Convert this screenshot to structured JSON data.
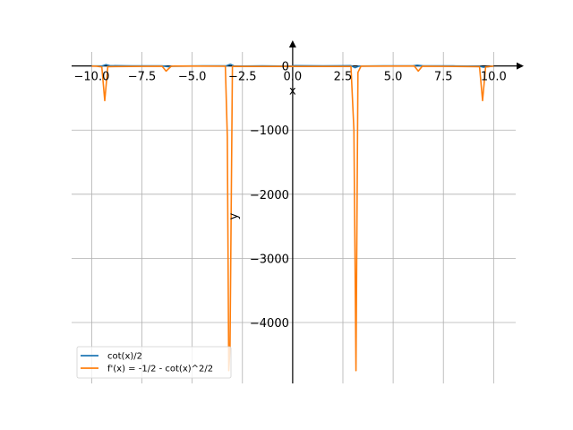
{
  "chart_data": {
    "type": "line",
    "xlabel": "x",
    "ylabel": "y",
    "xlim": [
      -11.0,
      11.5
    ],
    "ylim": [
      -4950,
      400
    ],
    "grid": true,
    "legend_position": "lower-left",
    "x_ticks": [
      {
        "value": -10.0,
        "label": "−10.0"
      },
      {
        "value": -7.5,
        "label": "−7.5"
      },
      {
        "value": -5.0,
        "label": "−5.0"
      },
      {
        "value": -2.5,
        "label": "−2.5"
      },
      {
        "value": 0.0,
        "label": "0.0"
      },
      {
        "value": 2.5,
        "label": "2.5"
      },
      {
        "value": 5.0,
        "label": "5.0"
      },
      {
        "value": 7.5,
        "label": "7.5"
      },
      {
        "value": 10.0,
        "label": "10.0"
      }
    ],
    "y_ticks": [
      {
        "value": 0,
        "label": "0"
      },
      {
        "value": -1000,
        "label": "−1000"
      },
      {
        "value": -2000,
        "label": "−2000"
      },
      {
        "value": -3000,
        "label": "−3000"
      },
      {
        "value": -4000,
        "label": "−4000"
      }
    ],
    "series": [
      {
        "name": "cot(x)/2",
        "color": "#1f77b4",
        "x": [
          -10.0,
          -9.5,
          -9.3,
          -9.1,
          -8.0,
          -6.5,
          -6.2,
          -6.0,
          -4.5,
          -3.3,
          -3.1,
          -2.9,
          -1.5,
          -0.1,
          0.1,
          1.5,
          2.9,
          3.1,
          3.3,
          4.5,
          6.0,
          6.2,
          6.5,
          8.0,
          9.3,
          9.5,
          10.0
        ],
        "y": [
          -0.3,
          -1.1,
          20,
          4,
          0,
          0,
          -12,
          -3,
          0,
          2,
          27,
          -4,
          0,
          -4,
          4,
          0,
          4,
          -27,
          -2,
          0,
          3,
          12,
          0,
          0,
          -4,
          -20,
          -0.3
        ]
      },
      {
        "name": "f'(x) = -1/2 - cot(x)^2/2",
        "color": "#ff7f0e",
        "x": [
          -10.0,
          -9.75,
          -9.5,
          -9.35,
          -9.2,
          -6.5,
          -6.3,
          -6.05,
          -5.9,
          -3.35,
          -3.25,
          -3.18,
          -3.12,
          -3.0,
          2.9,
          3.05,
          3.15,
          3.25,
          3.4,
          6.05,
          6.25,
          6.45,
          9.3,
          9.45,
          9.6,
          10.0
        ],
        "y": [
          -2.5,
          -4,
          -15,
          -540,
          -10,
          -4,
          -80,
          -5,
          -1,
          -3,
          -1100,
          -4750,
          -4400,
          -8,
          -8,
          -1000,
          -4750,
          -100,
          -3,
          -1,
          -80,
          -4,
          -10,
          -540,
          -15,
          -2.5
        ]
      }
    ]
  }
}
